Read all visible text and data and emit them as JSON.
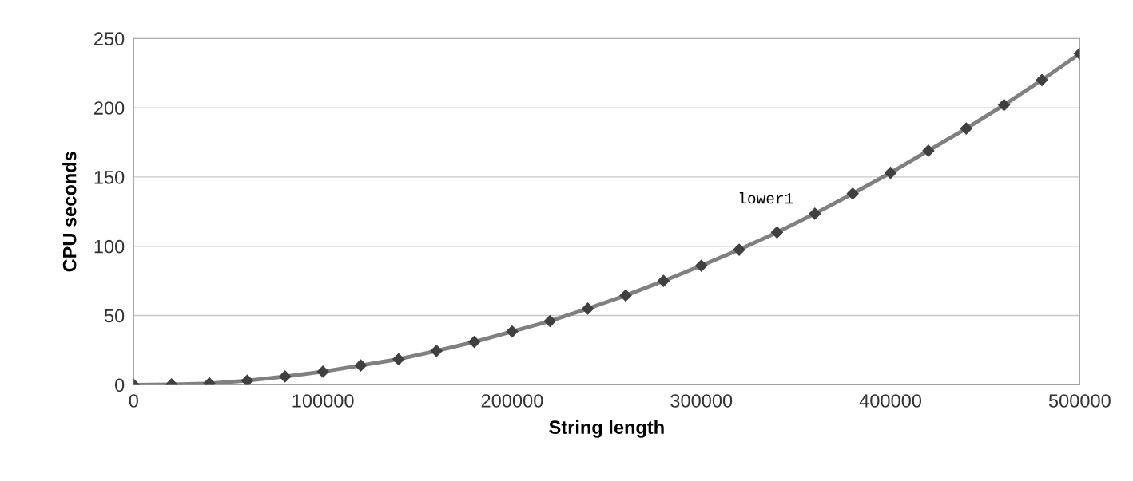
{
  "chart_data": {
    "type": "line",
    "xlabel": "String length",
    "ylabel": "CPU seconds",
    "x": [
      0,
      20000,
      40000,
      60000,
      80000,
      100000,
      120000,
      140000,
      160000,
      180000,
      200000,
      220000,
      240000,
      260000,
      280000,
      300000,
      320000,
      340000,
      360000,
      380000,
      400000,
      420000,
      440000,
      460000,
      480000,
      500000
    ],
    "series": [
      {
        "color": "#808080",
        "values": [
          0,
          0.3,
          1,
          3,
          6,
          9.5,
          14,
          18.5,
          24.5,
          31,
          38.5,
          46,
          55,
          64.5,
          75,
          86,
          97.5,
          110,
          123.5,
          138,
          153,
          169,
          185,
          202,
          220,
          239
        ]
      }
    ],
    "xlim": [
      0,
      500000
    ],
    "xticks": [
      0,
      100000,
      200000,
      300000,
      400000,
      500000
    ],
    "ylim": [
      0,
      250
    ],
    "yticks": [
      0,
      50,
      100,
      150,
      200,
      250
    ],
    "grid": "y",
    "marker": "diamond",
    "line_style": "solid",
    "annotations": [
      "lower1"
    ]
  }
}
